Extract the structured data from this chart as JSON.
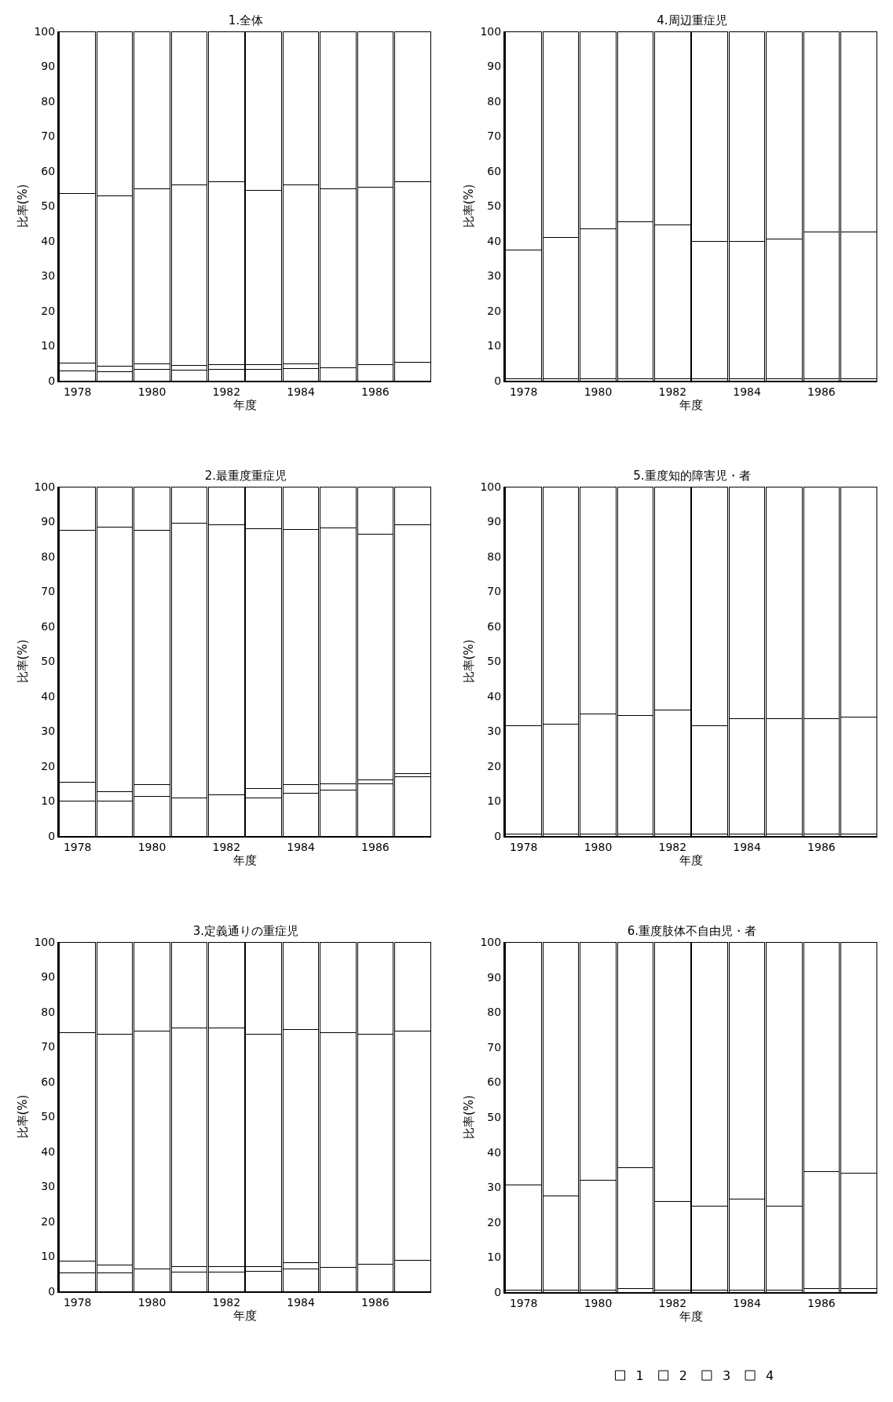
{
  "chart_data": [
    {
      "type": "bar",
      "stacked": true,
      "title": "1.全体",
      "xlabel": "年度",
      "ylabel": "比率(%)",
      "categories": [
        "1978",
        null,
        "1980",
        null,
        "1982",
        null,
        "1984",
        null,
        "1986",
        null
      ],
      "ylim": [
        0,
        100
      ],
      "yticks": [
        0,
        10,
        20,
        30,
        40,
        50,
        60,
        70,
        80,
        90,
        100
      ],
      "series": [
        {
          "color": "#ffffff",
          "values": [
            2.8,
            2.5,
            3.2,
            3.0,
            3.3,
            3.2,
            3.5,
            3.8,
            4.5,
            5.2
          ]
        },
        {
          "color": "#ffffff",
          "values": [
            2.2,
            1.7,
            1.6,
            1.3,
            1.2,
            1.3,
            1.3,
            0,
            0,
            0
          ]
        },
        {
          "color": "#ffffff",
          "values": [
            48.5,
            48.8,
            50.2,
            51.7,
            52.5,
            50,
            51.2,
            51.2,
            51,
            51.8
          ]
        },
        {
          "color": "#ffffff",
          "values": [
            46.5,
            47,
            45,
            44,
            43,
            45.5,
            44,
            45,
            44.5,
            43
          ]
        }
      ]
    },
    {
      "type": "bar",
      "stacked": true,
      "title": "2.最重度重症児",
      "xlabel": "年度",
      "ylabel": "比率(%)",
      "categories": [
        "1978",
        null,
        "1980",
        null,
        "1982",
        null,
        "1984",
        null,
        "1986",
        null
      ],
      "ylim": [
        0,
        100
      ],
      "yticks": [
        0,
        10,
        20,
        30,
        40,
        50,
        60,
        70,
        80,
        90,
        100
      ],
      "series": [
        {
          "color": "#ffffff",
          "values": [
            10,
            10,
            11.3,
            11,
            11.7,
            11,
            12.2,
            13.2,
            15,
            17
          ]
        },
        {
          "color": "#ffffff",
          "values": [
            5.5,
            2.8,
            3.5,
            0,
            0,
            2.5,
            2.6,
            1.8,
            1,
            0.8
          ]
        },
        {
          "color": "#ffffff",
          "values": [
            72,
            75.7,
            72.7,
            78.5,
            77.3,
            74.5,
            73,
            73.2,
            70.5,
            71.2
          ]
        },
        {
          "color": "#ffffff",
          "values": [
            12.5,
            11.5,
            12.5,
            10.5,
            11,
            12,
            12.2,
            11.8,
            13.5,
            11
          ]
        }
      ]
    },
    {
      "type": "bar",
      "stacked": true,
      "title": "3.定義通りの重症児",
      "xlabel": "年度",
      "ylabel": "比率(%)",
      "categories": [
        "1978",
        null,
        "1980",
        null,
        "1982",
        null,
        "1984",
        null,
        "1986",
        null
      ],
      "ylim": [
        0,
        100
      ],
      "yticks": [
        0,
        10,
        20,
        30,
        40,
        50,
        60,
        70,
        80,
        90,
        100
      ],
      "series": [
        {
          "color": "#ffffff",
          "values": [
            5.2,
            5.3,
            6.3,
            5.6,
            5.6,
            5.7,
            6.3,
            6.8,
            7.8,
            8.8
          ]
        },
        {
          "color": "#ffffff",
          "values": [
            3.5,
            2.2,
            0,
            1.4,
            1.4,
            1.4,
            1.8,
            0,
            0,
            0
          ]
        },
        {
          "color": "#ffffff",
          "values": [
            65.3,
            66,
            68.2,
            68.5,
            68.5,
            66.4,
            66.9,
            67.2,
            65.7,
            65.7
          ]
        },
        {
          "color": "#ffffff",
          "values": [
            26,
            26.5,
            25.5,
            24.5,
            24.5,
            26.5,
            25,
            26,
            26.5,
            25.5
          ]
        }
      ]
    },
    {
      "type": "bar",
      "stacked": true,
      "title": "4.周辺重症児",
      "xlabel": "年度",
      "ylabel": "比率(%)",
      "categories": [
        "1978",
        null,
        "1980",
        null,
        "1982",
        null,
        "1984",
        null,
        "1986",
        null
      ],
      "ylim": [
        0,
        100
      ],
      "yticks": [
        0,
        10,
        20,
        30,
        40,
        50,
        60,
        70,
        80,
        90,
        100
      ],
      "series": [
        {
          "color": "#ffffff",
          "values": [
            0.5,
            0.5,
            0.5,
            0.5,
            0.5,
            0.5,
            0.5,
            0.5,
            0.5,
            0.5
          ]
        },
        {
          "color": "#ffffff",
          "values": [
            0,
            0,
            0,
            0,
            0,
            0,
            0,
            0,
            0,
            0
          ]
        },
        {
          "color": "#ffffff",
          "values": [
            37,
            40.5,
            43,
            45,
            44,
            39.5,
            39.5,
            40,
            42,
            42
          ]
        },
        {
          "color": "#ffffff",
          "values": [
            62.5,
            59,
            56.5,
            54.5,
            55.5,
            60,
            60,
            59.5,
            57.5,
            57.5
          ]
        }
      ]
    },
    {
      "type": "bar",
      "stacked": true,
      "title": "5.重度知的障害児・者",
      "xlabel": "年度",
      "ylabel": "比率(%)",
      "categories": [
        "1978",
        null,
        "1980",
        null,
        "1982",
        null,
        "1984",
        null,
        "1986",
        null
      ],
      "ylim": [
        0,
        100
      ],
      "yticks": [
        0,
        10,
        20,
        30,
        40,
        50,
        60,
        70,
        80,
        90,
        100
      ],
      "series": [
        {
          "color": "#ffffff",
          "values": [
            0.5,
            0.5,
            0.5,
            0.5,
            0.5,
            0.5,
            0.5,
            0.5,
            0.5,
            0.5
          ]
        },
        {
          "color": "#ffffff",
          "values": [
            0,
            0,
            0,
            0,
            0,
            0,
            0,
            0,
            0,
            0
          ]
        },
        {
          "color": "#ffffff",
          "values": [
            31,
            31.5,
            34.5,
            34,
            35.5,
            31,
            33,
            33,
            33,
            33.5
          ]
        },
        {
          "color": "#ffffff",
          "values": [
            68.5,
            68,
            65,
            65.5,
            64,
            68.5,
            66.5,
            66.5,
            66.5,
            66
          ]
        }
      ]
    },
    {
      "type": "bar",
      "stacked": true,
      "title": "6.重度肢体不自由児・者",
      "xlabel": "年度",
      "ylabel": "比率(%)",
      "categories": [
        "1978",
        null,
        "1980",
        null,
        "1982",
        null,
        "1984",
        null,
        "1986",
        null
      ],
      "ylim": [
        0,
        100
      ],
      "yticks": [
        0,
        10,
        20,
        30,
        40,
        50,
        60,
        70,
        80,
        90,
        100
      ],
      "legend": "bottom",
      "series": [
        {
          "name": "1",
          "color": "#ffffff",
          "values": [
            0.5,
            0.5,
            0.5,
            1,
            0.5,
            0.5,
            0.5,
            0.5,
            1,
            1
          ]
        },
        {
          "name": "2",
          "color": "#ffffff",
          "values": [
            0,
            0,
            0,
            0,
            0,
            0,
            0,
            0,
            0,
            0
          ]
        },
        {
          "name": "3",
          "color": "#ffffff",
          "values": [
            30,
            27,
            31.5,
            34.5,
            25.5,
            24,
            26,
            24,
            33.5,
            33
          ]
        },
        {
          "name": "4",
          "color": "#ffffff",
          "values": [
            69.5,
            72.5,
            68,
            64.5,
            74,
            75.5,
            73.5,
            75.5,
            65.5,
            66
          ]
        }
      ]
    }
  ]
}
